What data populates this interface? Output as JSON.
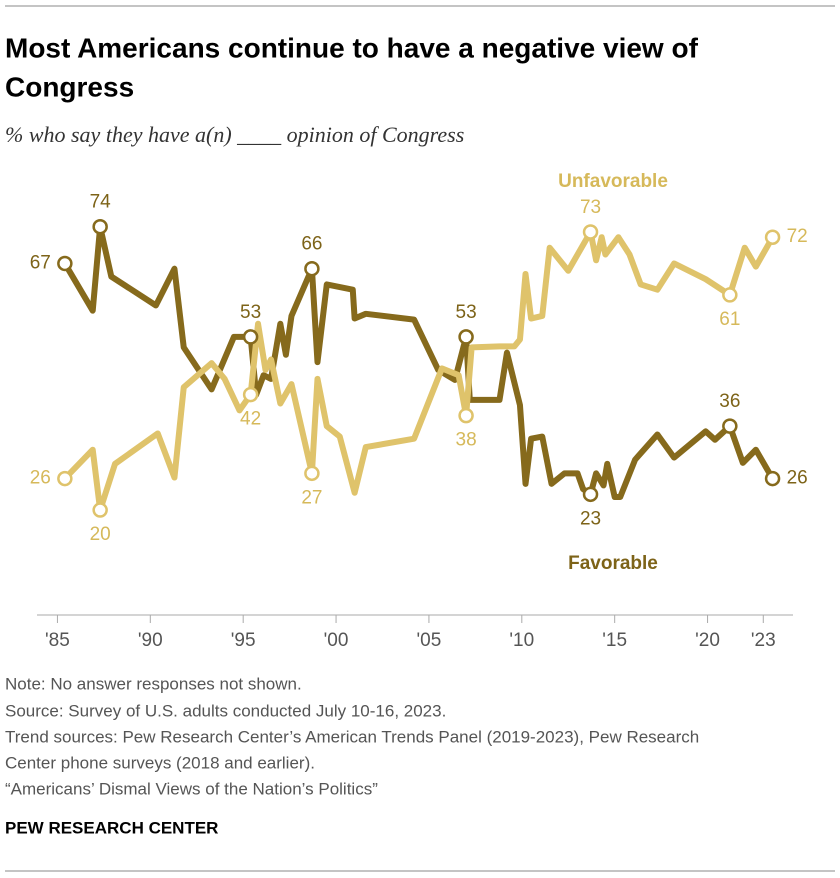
{
  "chart_data": {
    "type": "line",
    "title": [
      "Most Americans continue to have a negative view of",
      "Congress"
    ],
    "subtitle": "% who say they have a(n) ____ opinion of Congress",
    "notes": [
      "Note: No answer responses not shown.",
      "Source: Survey of U.S. adults conducted July 10-16, 2023.",
      "Trend sources: Pew Research Center’s American Trends Panel (2019-2023), Pew Research",
      "Center phone surveys (2018 and earlier).",
      "“Americans’ Dismal Views of the Nation’s Politics”"
    ],
    "credit": "PEW RESEARCH CENTER",
    "xlim": [
      1983.9,
      2024.6
    ],
    "ylim": [
      0,
      85
    ],
    "xticks": [
      {
        "value": 1985,
        "label": "'85"
      },
      {
        "value": 1990,
        "label": "'90"
      },
      {
        "value": 1995,
        "label": "'95"
      },
      {
        "value": 2000,
        "label": "'00"
      },
      {
        "value": 2005,
        "label": "'05"
      },
      {
        "value": 2010,
        "label": "'10"
      },
      {
        "value": 2015,
        "label": "'15"
      },
      {
        "value": 2020,
        "label": "'20"
      },
      {
        "value": 2023,
        "label": "'23"
      }
    ],
    "series": [
      {
        "name": "Favorable",
        "color": "#866a1c",
        "label_color": "#7d6318",
        "x": [
          1985.4,
          1986.9,
          1987.3,
          1987.9,
          1990.3,
          1991.3,
          1991.8,
          1993.3,
          1994.5,
          1995.4,
          1995.7,
          1996.1,
          1996.5,
          1997,
          1997.3,
          1997.6,
          1998.7,
          1999,
          1999.5,
          2000.9,
          2001,
          2001.6,
          2004.2,
          2005.5,
          2006.4,
          2007,
          2007.2,
          2008.8,
          2009.2,
          2009.9,
          2010.2,
          2010.5,
          2011.1,
          2011.6,
          2012.3,
          2013,
          2013.3,
          2013.7,
          2014,
          2014.4,
          2014.6,
          2015,
          2015.3,
          2016.1,
          2017.3,
          2018.2,
          2019.9,
          2020.4,
          2021.2,
          2021.9,
          2022.6,
          2023.5
        ],
        "values": [
          67,
          58,
          74,
          64.5,
          59,
          66,
          51,
          43,
          53,
          53,
          42,
          45.7,
          45,
          55.5,
          49.6,
          57,
          66,
          48.2,
          63,
          62,
          56.5,
          57.4,
          56.3,
          46.7,
          44.8,
          53,
          41,
          41,
          50,
          40,
          25,
          33.6,
          34,
          25,
          27,
          27,
          24,
          23,
          27,
          24.7,
          28.8,
          22.5,
          22.5,
          29.6,
          34.4,
          30,
          35,
          33.4,
          36,
          29,
          31.5,
          26
        ],
        "value_labels": [
          "67",
          null,
          "74",
          null,
          null,
          null,
          null,
          null,
          null,
          "53",
          null,
          null,
          null,
          null,
          null,
          null,
          "66",
          null,
          null,
          null,
          null,
          null,
          null,
          null,
          null,
          "53",
          null,
          null,
          null,
          null,
          null,
          null,
          null,
          null,
          null,
          null,
          null,
          "23",
          null,
          null,
          null,
          null,
          null,
          null,
          null,
          null,
          null,
          null,
          "36",
          null,
          null,
          "26"
        ]
      },
      {
        "name": "Unfavorable",
        "color": "#dfc36b",
        "label_color": "#d6b95a",
        "x": [
          1985.4,
          1986.9,
          1987.3,
          1988.1,
          1990.4,
          1991.3,
          1991.8,
          1993.3,
          1994,
          1994.8,
          1995.4,
          1995.8,
          1996.2,
          1996.5,
          1997,
          1997.6,
          1998.7,
          1999,
          1999.5,
          2000.2,
          2001,
          2001.6,
          2004.2,
          2005.7,
          2006.6,
          2007,
          2007.3,
          2008.8,
          2009.6,
          2009.9,
          2010.2,
          2010.5,
          2011.1,
          2011.5,
          2012.5,
          2013.7,
          2014,
          2014.3,
          2014.5,
          2015.2,
          2015.8,
          2016.4,
          2017.3,
          2018.2,
          2019.9,
          2021.2,
          2022,
          2022.6,
          2023.5
        ],
        "values": [
          26,
          31.5,
          20,
          28.8,
          34.6,
          26.2,
          43.4,
          48,
          45,
          39,
          42,
          55.5,
          46.7,
          48.7,
          40.3,
          44,
          27,
          45,
          36,
          34,
          23.3,
          32,
          33.6,
          47,
          45.7,
          38,
          51,
          51.2,
          51.2,
          52.5,
          65,
          56.5,
          57,
          70,
          65.6,
          73,
          67.6,
          72,
          68.7,
          72,
          68.7,
          63,
          62,
          67,
          64,
          61,
          70,
          66.4,
          72
        ],
        "value_labels": [
          "26",
          null,
          "20",
          null,
          null,
          null,
          null,
          null,
          null,
          null,
          "42",
          null,
          null,
          null,
          null,
          null,
          "27",
          null,
          null,
          null,
          null,
          null,
          null,
          null,
          null,
          "38",
          null,
          null,
          null,
          null,
          null,
          null,
          null,
          null,
          null,
          "73",
          null,
          null,
          null,
          null,
          null,
          null,
          null,
          null,
          null,
          "61",
          null,
          null,
          "72"
        ]
      }
    ]
  }
}
